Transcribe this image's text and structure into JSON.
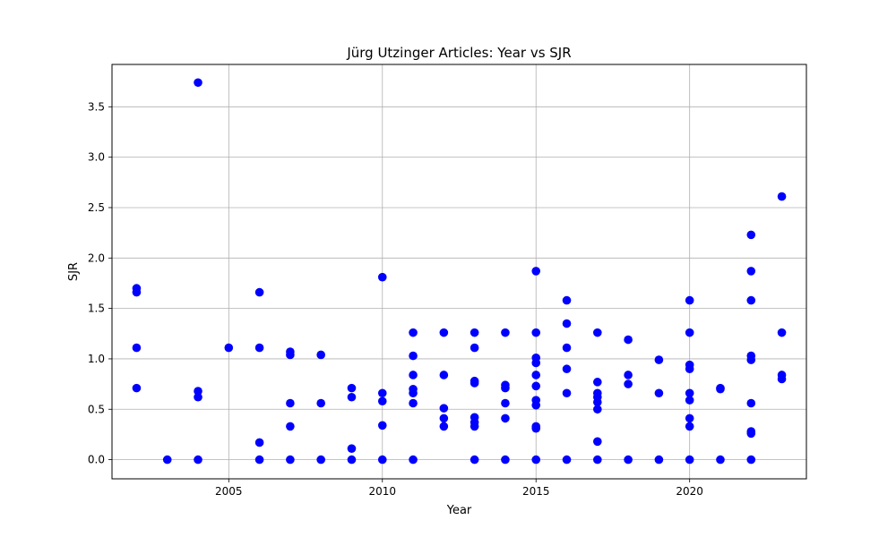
{
  "chart_data": {
    "type": "scatter",
    "title": "Jürg Utzinger Articles: Year vs SJR",
    "xlabel": "Year",
    "ylabel": "SJR",
    "xlim": [
      2001.2,
      2023.8
    ],
    "ylim": [
      -0.19,
      3.92
    ],
    "xticks": [
      2005,
      2010,
      2015,
      2020
    ],
    "yticks": [
      0.0,
      0.5,
      1.0,
      1.5,
      2.0,
      2.5,
      3.0,
      3.5
    ],
    "ytick_labels": [
      "0.0",
      "0.5",
      "1.0",
      "1.5",
      "2.0",
      "2.5",
      "3.0",
      "3.5"
    ],
    "grid": true,
    "marker_color": "#0000ff",
    "points": [
      [
        2002,
        1.7
      ],
      [
        2002,
        1.66
      ],
      [
        2002,
        1.11
      ],
      [
        2002,
        0.71
      ],
      [
        2003,
        0.0
      ],
      [
        2004,
        3.74
      ],
      [
        2004,
        0.68
      ],
      [
        2004,
        0.62
      ],
      [
        2004,
        0.0
      ],
      [
        2005,
        1.11
      ],
      [
        2006,
        1.66
      ],
      [
        2006,
        1.11
      ],
      [
        2006,
        0.17
      ],
      [
        2006,
        0.0
      ],
      [
        2007,
        1.07
      ],
      [
        2007,
        1.04
      ],
      [
        2007,
        0.56
      ],
      [
        2007,
        0.33
      ],
      [
        2007,
        0.0
      ],
      [
        2008,
        1.04
      ],
      [
        2008,
        0.56
      ],
      [
        2008,
        0.0
      ],
      [
        2009,
        0.71
      ],
      [
        2009,
        0.62
      ],
      [
        2009,
        0.11
      ],
      [
        2009,
        0.0
      ],
      [
        2010,
        1.81
      ],
      [
        2010,
        0.66
      ],
      [
        2010,
        0.58
      ],
      [
        2010,
        0.34
      ],
      [
        2010,
        0.0
      ],
      [
        2011,
        1.26
      ],
      [
        2011,
        1.03
      ],
      [
        2011,
        0.84
      ],
      [
        2011,
        0.7
      ],
      [
        2011,
        0.66
      ],
      [
        2011,
        0.56
      ],
      [
        2011,
        0.0
      ],
      [
        2012,
        1.26
      ],
      [
        2012,
        0.84
      ],
      [
        2012,
        0.51
      ],
      [
        2012,
        0.41
      ],
      [
        2012,
        0.33
      ],
      [
        2013,
        1.26
      ],
      [
        2013,
        1.11
      ],
      [
        2013,
        0.78
      ],
      [
        2013,
        0.76
      ],
      [
        2013,
        0.42
      ],
      [
        2013,
        0.37
      ],
      [
        2013,
        0.33
      ],
      [
        2013,
        0.0
      ],
      [
        2014,
        1.26
      ],
      [
        2014,
        0.74
      ],
      [
        2014,
        0.71
      ],
      [
        2014,
        0.56
      ],
      [
        2014,
        0.41
      ],
      [
        2014,
        0.0
      ],
      [
        2015,
        1.87
      ],
      [
        2015,
        1.26
      ],
      [
        2015,
        1.01
      ],
      [
        2015,
        0.96
      ],
      [
        2015,
        0.84
      ],
      [
        2015,
        0.73
      ],
      [
        2015,
        0.59
      ],
      [
        2015,
        0.54
      ],
      [
        2015,
        0.33
      ],
      [
        2015,
        0.31
      ],
      [
        2015,
        0.0
      ],
      [
        2016,
        1.58
      ],
      [
        2016,
        1.35
      ],
      [
        2016,
        1.11
      ],
      [
        2016,
        0.9
      ],
      [
        2016,
        0.66
      ],
      [
        2016,
        0.0
      ],
      [
        2017,
        1.26
      ],
      [
        2017,
        0.77
      ],
      [
        2017,
        0.66
      ],
      [
        2017,
        0.62
      ],
      [
        2017,
        0.57
      ],
      [
        2017,
        0.5
      ],
      [
        2017,
        0.18
      ],
      [
        2017,
        0.0
      ],
      [
        2018,
        1.19
      ],
      [
        2018,
        0.84
      ],
      [
        2018,
        0.75
      ],
      [
        2018,
        0.0
      ],
      [
        2019,
        0.99
      ],
      [
        2019,
        0.66
      ],
      [
        2019,
        0.0
      ],
      [
        2020,
        1.58
      ],
      [
        2020,
        1.26
      ],
      [
        2020,
        0.94
      ],
      [
        2020,
        0.9
      ],
      [
        2020,
        0.66
      ],
      [
        2020,
        0.59
      ],
      [
        2020,
        0.41
      ],
      [
        2020,
        0.33
      ],
      [
        2020,
        0.0
      ],
      [
        2021,
        0.71
      ],
      [
        2021,
        0.7
      ],
      [
        2021,
        0.0
      ],
      [
        2022,
        2.23
      ],
      [
        2022,
        1.87
      ],
      [
        2022,
        1.58
      ],
      [
        2022,
        1.03
      ],
      [
        2022,
        0.99
      ],
      [
        2022,
        0.56
      ],
      [
        2022,
        0.28
      ],
      [
        2022,
        0.26
      ],
      [
        2022,
        0.0
      ],
      [
        2023,
        2.61
      ],
      [
        2023,
        1.26
      ],
      [
        2023,
        0.84
      ],
      [
        2023,
        0.8
      ]
    ]
  }
}
